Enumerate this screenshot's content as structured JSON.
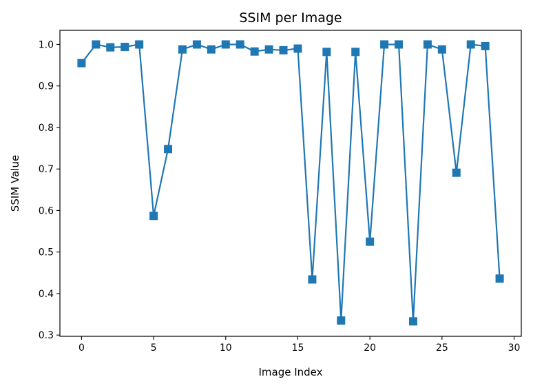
{
  "chart_data": {
    "type": "line",
    "title": "SSIM per Image",
    "xlabel": "Image Index",
    "ylabel": "SSIM Value",
    "xlim": [
      -1.5,
      30.5
    ],
    "ylim": [
      0.297,
      1.034
    ],
    "xticks": [
      0,
      5,
      10,
      15,
      20,
      25,
      30
    ],
    "yticks": [
      0.3,
      0.4,
      0.5,
      0.6,
      0.7,
      0.8,
      0.9,
      1.0
    ],
    "xtick_labels": [
      "0",
      "5",
      "10",
      "15",
      "20",
      "25",
      "30"
    ],
    "ytick_labels": [
      "0.3",
      "0.4",
      "0.5",
      "0.6",
      "0.7",
      "0.8",
      "0.9",
      "1.0"
    ],
    "grid": false,
    "marker": "square",
    "color": "#1f77b4",
    "series": [
      {
        "x": [
          0,
          1,
          2,
          3,
          4,
          5,
          6,
          7,
          8,
          9,
          10,
          11,
          12,
          13,
          14,
          15,
          16,
          17,
          18,
          19,
          20,
          21,
          22,
          23,
          24,
          25,
          26,
          27,
          28,
          29
        ],
        "values": [
          0.955,
          1.0,
          0.993,
          0.994,
          1.0,
          0.587,
          0.748,
          0.988,
          1.0,
          0.988,
          1.0,
          1.0,
          0.983,
          0.988,
          0.986,
          0.99,
          0.434,
          0.982,
          0.335,
          0.982,
          0.525,
          1.0,
          1.0,
          0.333,
          1.0,
          0.988,
          0.691,
          1.0,
          0.996,
          0.436
        ]
      }
    ]
  }
}
